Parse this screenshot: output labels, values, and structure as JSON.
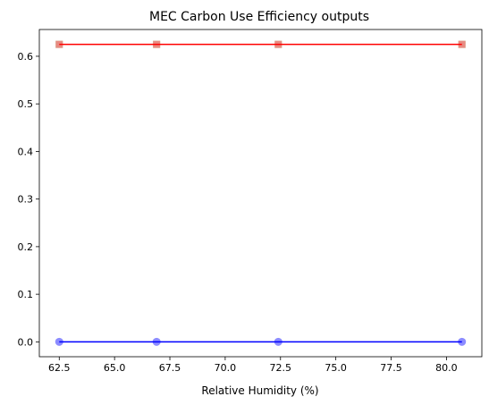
{
  "chart_data": {
    "type": "line",
    "title": "MEC Carbon Use Efficiency outputs",
    "xlabel": "Relative Humidity (%)",
    "ylabel": "",
    "xlim": [
      61.6,
      81.6
    ],
    "ylim": [
      -0.03125,
      0.65625
    ],
    "x_ticks": [
      "62.5",
      "65.0",
      "67.5",
      "70.0",
      "72.5",
      "75.0",
      "77.5",
      "80.0"
    ],
    "y_ticks": [
      "0.0",
      "0.1",
      "0.2",
      "0.3",
      "0.4",
      "0.5",
      "0.6"
    ],
    "x": [
      62.5,
      66.9,
      72.4,
      80.7
    ],
    "grid": false,
    "series": [
      {
        "values": [
          0.625,
          0.625,
          0.625,
          0.625
        ],
        "marker": "square",
        "color": "#90ee90",
        "line": false
      },
      {
        "values": [
          0.625,
          0.625,
          0.625,
          0.625
        ],
        "marker": "square",
        "color": "#f08080",
        "line": false
      },
      {
        "values": [
          0.625,
          0.625,
          0.625,
          0.625
        ],
        "marker": "none",
        "color": "#ff0000",
        "line": true
      },
      {
        "values": [
          0.0,
          0.0,
          0.0,
          0.0
        ],
        "marker": "circle",
        "color": "#8080ff",
        "line": false
      },
      {
        "values": [
          0.0,
          0.0,
          0.0,
          0.0
        ],
        "marker": "none",
        "color": "#0000ff",
        "line": true
      }
    ]
  }
}
